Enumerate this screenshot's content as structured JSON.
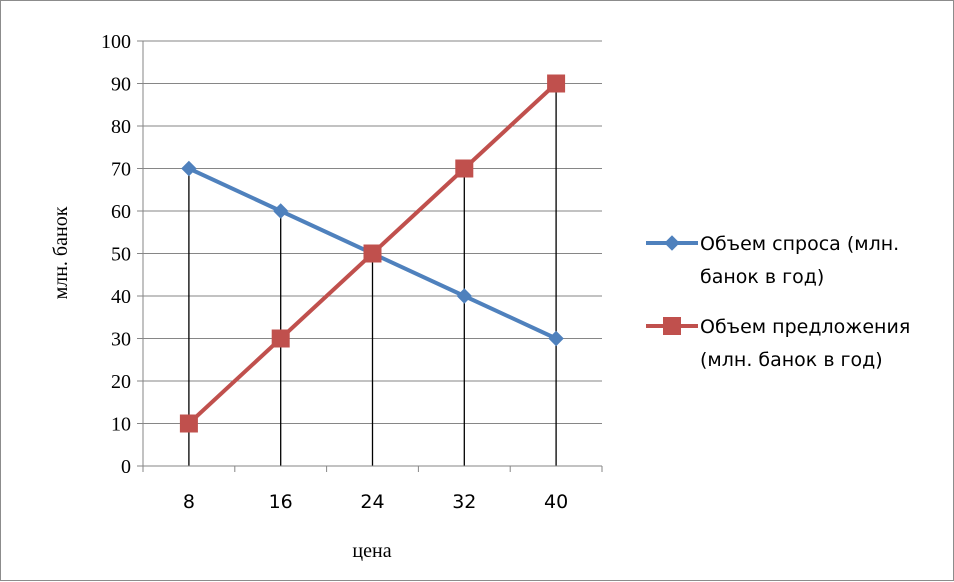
{
  "chart_data": {
    "type": "line",
    "categories": [
      "8",
      "16",
      "24",
      "32",
      "40"
    ],
    "x": [
      8,
      16,
      24,
      32,
      40
    ],
    "xlabel": "цена",
    "ylabel": "млн. банок",
    "ylim": [
      0,
      100
    ],
    "yticks": [
      0,
      10,
      20,
      30,
      40,
      50,
      60,
      70,
      80,
      90,
      100
    ],
    "grid": true,
    "drop_lines": true,
    "legend_position": "right",
    "series": [
      {
        "name": "Объем спроса (млн. банок в год)",
        "legend_lines": [
          "Объем спроса (млн.",
          "банок в год)"
        ],
        "values": [
          70,
          60,
          50,
          40,
          30
        ],
        "color": "#4f81bd",
        "marker": "diamond"
      },
      {
        "name": "Объем предложения (млн. банок в год)",
        "legend_lines": [
          "Объем предложения",
          "(млн. банок в год)"
        ],
        "values": [
          10,
          30,
          50,
          70,
          90
        ],
        "color": "#c0504d",
        "marker": "square"
      }
    ]
  }
}
